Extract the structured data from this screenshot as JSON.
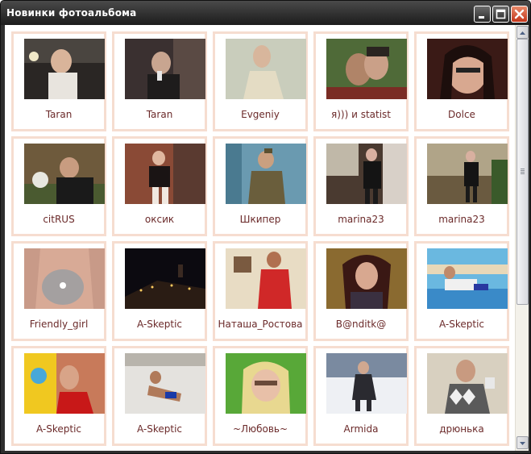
{
  "window": {
    "title": "Новинки фотоальбома",
    "minimize_icon": "minimize-icon",
    "maximize_icon": "maximize-icon",
    "close_icon": "close-icon"
  },
  "photos": [
    {
      "name": "Taran"
    },
    {
      "name": "Taran"
    },
    {
      "name": "Evgeniy"
    },
    {
      "name": "я))) и statist"
    },
    {
      "name": "Dolce"
    },
    {
      "name": "citRUS"
    },
    {
      "name": "оксик"
    },
    {
      "name": "Шкипер"
    },
    {
      "name": "marina23"
    },
    {
      "name": "marina23"
    },
    {
      "name": "Friendly_girl"
    },
    {
      "name": "A-Skeptic"
    },
    {
      "name": "Наташа_Ростова"
    },
    {
      "name": "B@nditk@"
    },
    {
      "name": "A-Skeptic"
    },
    {
      "name": "A-Skeptic"
    },
    {
      "name": "A-Skeptic"
    },
    {
      "name": "~Любовь~"
    },
    {
      "name": "Armida"
    },
    {
      "name": "дрюнька"
    }
  ],
  "colors": {
    "cell_border": "#f6ddd0",
    "caption": "#6b2a2a",
    "titlebar": "#2e2e2e"
  }
}
